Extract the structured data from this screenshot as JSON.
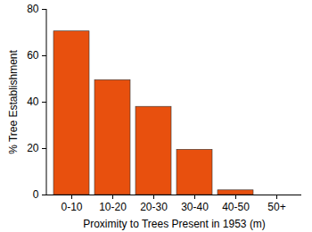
{
  "chart_data": {
    "type": "bar",
    "x_label": "Proximity to Trees Present in 1953 (m)",
    "y_label": "% Tree Establishment",
    "categories": [
      "0-10",
      "10-20",
      "20-30",
      "30-40",
      "40-50",
      "50+"
    ],
    "values": [
      70.5,
      49.5,
      38,
      19.5,
      2,
      0
    ],
    "color": "#e8500e",
    "ylim": [
      0,
      80
    ],
    "yticks": [
      0,
      20,
      40,
      60,
      80
    ],
    "grid": false
  }
}
